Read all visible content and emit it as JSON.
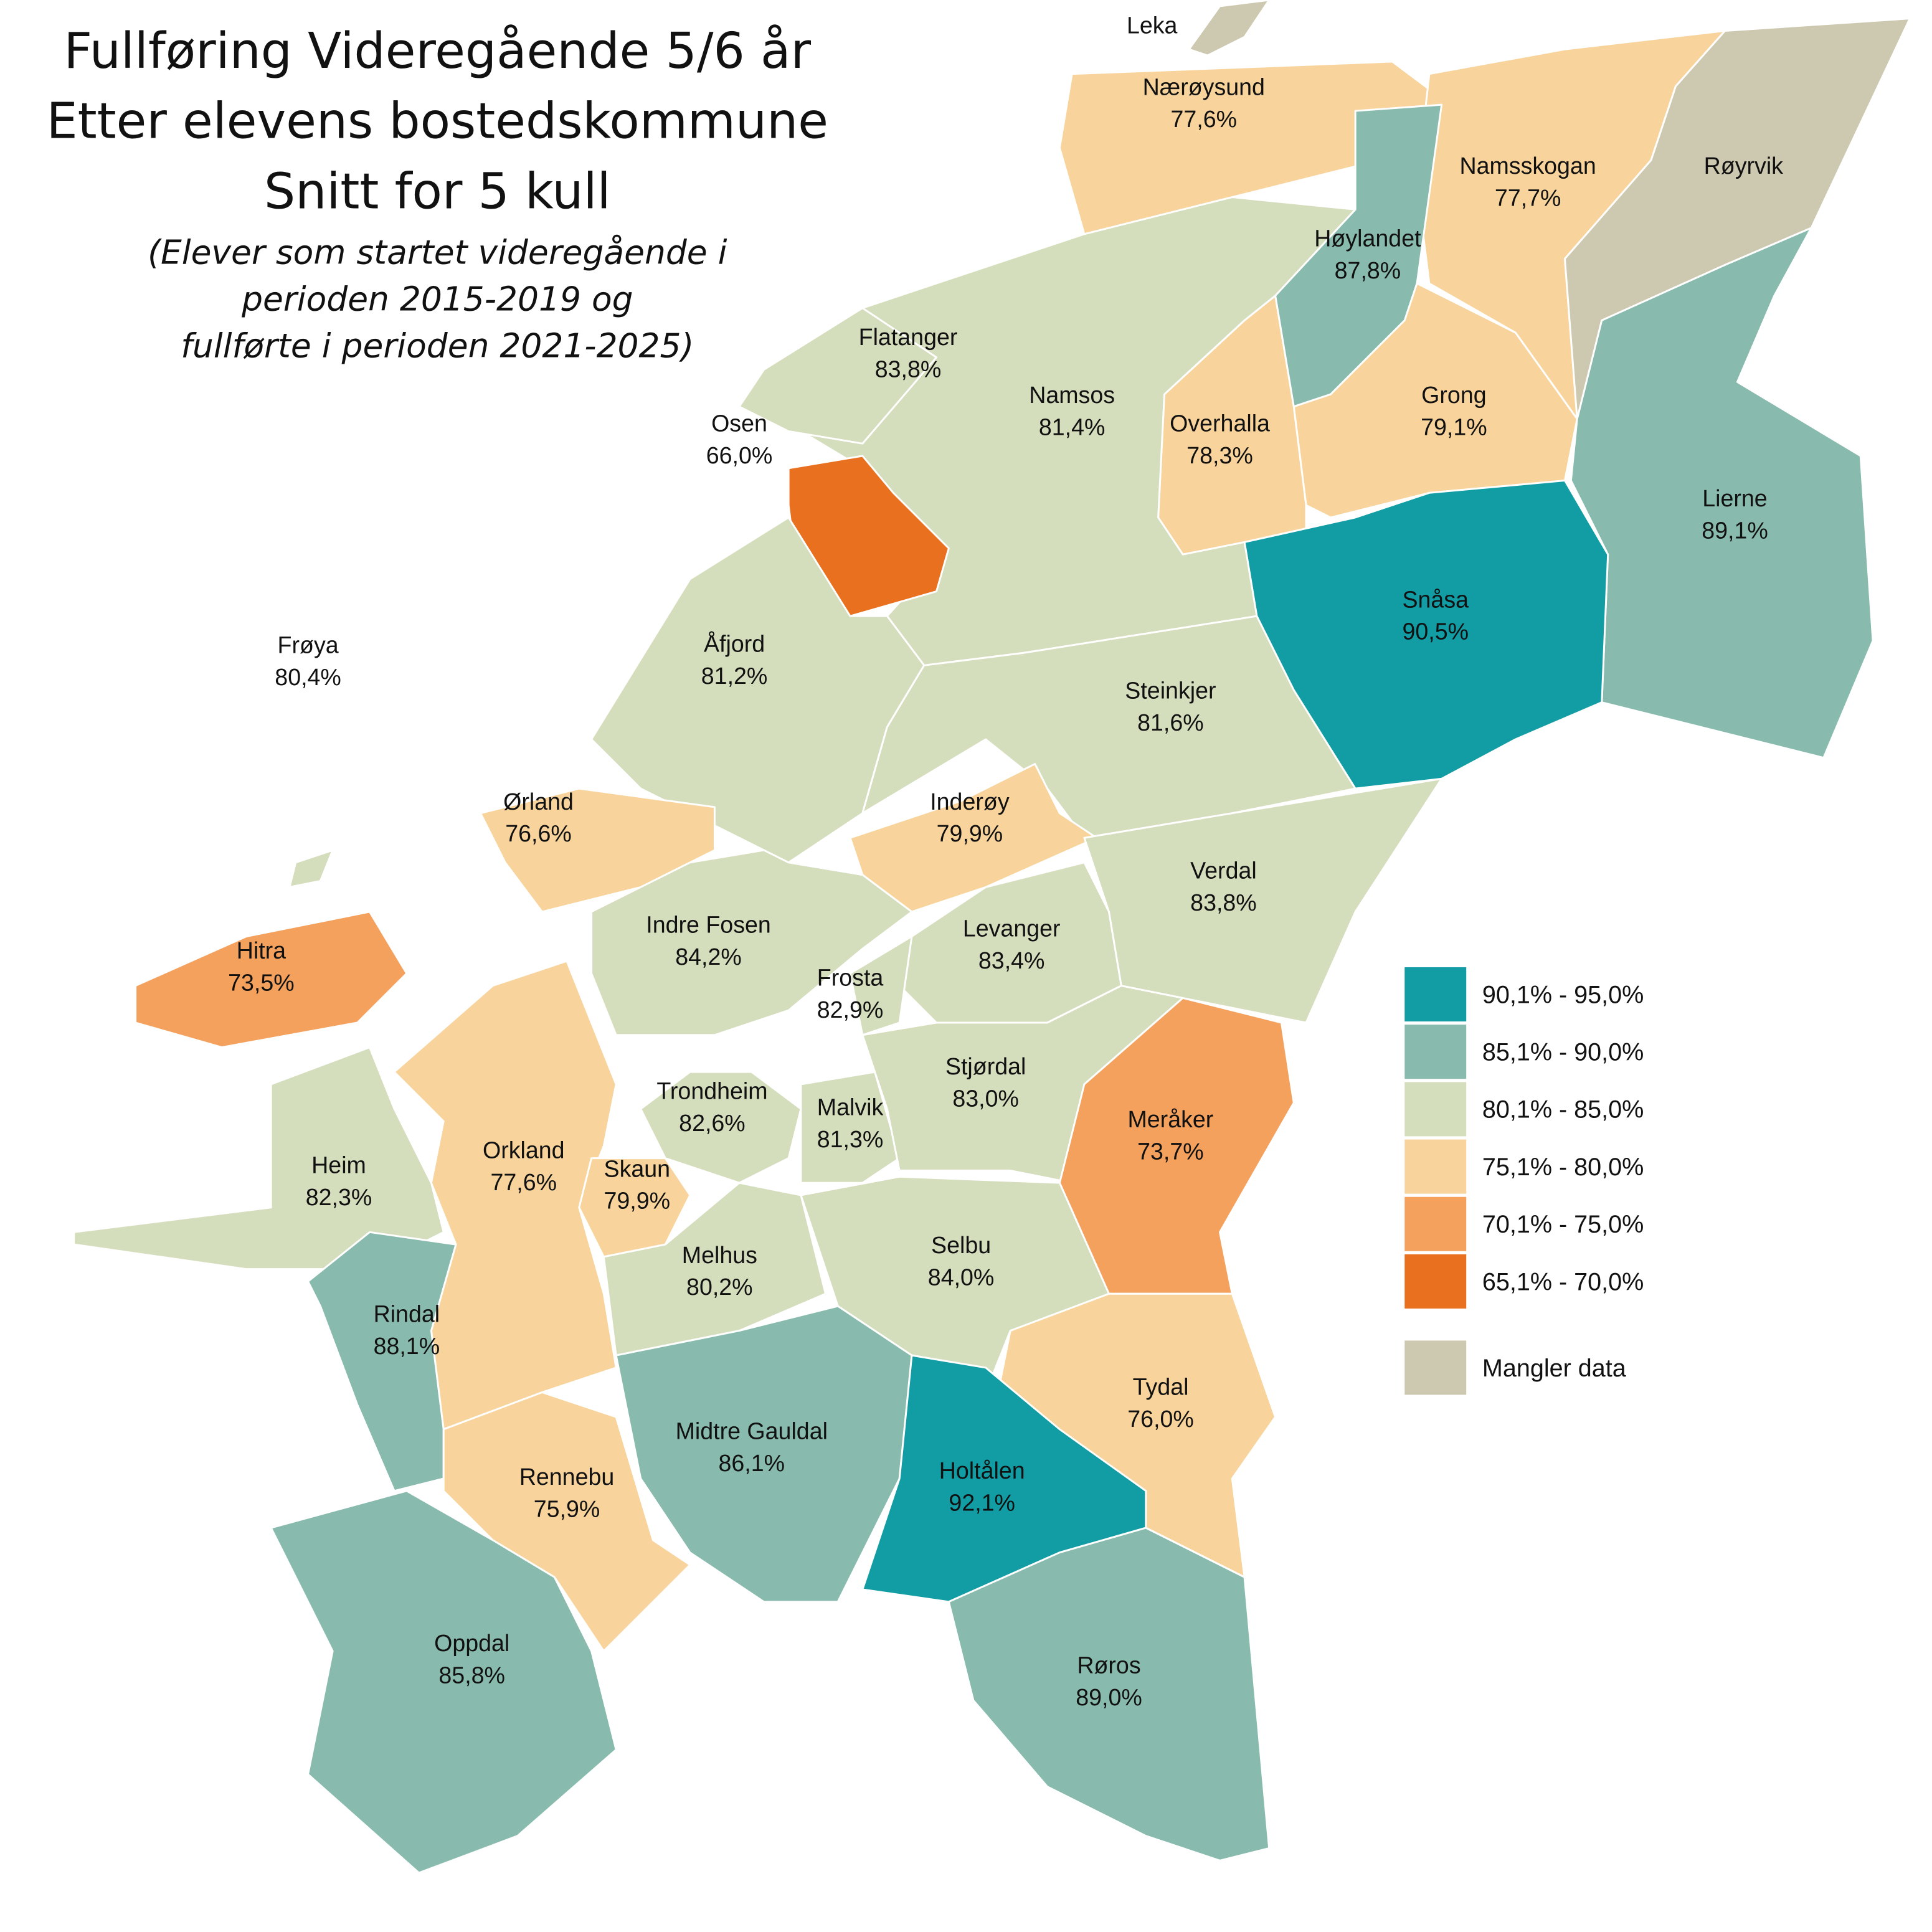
{
  "title": [
    "Fullføring Videregående 5/6 år",
    "Etter elevens bostedskommune",
    "Snitt for 5 kull"
  ],
  "subtitle": [
    "(Elever som startet videregående i",
    "perioden 2015-2019 og",
    "fullførte i perioden 2021-2025)"
  ],
  "regions": [
    {
      "name": "Leka",
      "color": "#cdc8b0"
    },
    {
      "name": "Nærøysund",
      "label": "77,6%",
      "color": "#f8d49c"
    },
    {
      "name": "Namsskogan",
      "label": "77,7%",
      "color": "#f8d49c"
    },
    {
      "name": "Røyrvik",
      "color": "#cdc8b0"
    },
    {
      "name": "Høylandet",
      "label": "87,8%",
      "color": "#88bbad"
    },
    {
      "name": "Grong",
      "label": "79,1%",
      "color": "#f8d49c"
    },
    {
      "name": "Overhalla",
      "label": "78,3%",
      "color": "#f8d49c"
    },
    {
      "name": "Lierne",
      "label": "89,1%",
      "color": "#88bbad"
    },
    {
      "name": "Snåsa",
      "label": "90,5%",
      "color": "#129ca3"
    },
    {
      "name": "Namsos",
      "label": "81,4%",
      "color": "#d4ddbc"
    },
    {
      "name": "Flatanger",
      "label": "83,8%",
      "color": "#d4ddbc"
    },
    {
      "name": "Osen",
      "label": "66,0%",
      "color": "#e9701f"
    },
    {
      "name": "Åfjord",
      "label": "81,2%",
      "color": "#d4ddbc"
    },
    {
      "name": "Steinkjer",
      "label": "81,6%",
      "color": "#d4ddbc"
    },
    {
      "name": "Frøya",
      "label": "80,4%",
      "color": "#d4ddbc"
    },
    {
      "name": "Ørland",
      "label": "76,6%",
      "color": "#f8d49c"
    },
    {
      "name": "Inderøy",
      "label": "79,9%",
      "color": "#f8d49c"
    },
    {
      "name": "Indre Fosen",
      "label": "84,2%",
      "color": "#d4ddbc"
    },
    {
      "name": "Verdal",
      "label": "83,8%",
      "color": "#d4ddbc"
    },
    {
      "name": "Levanger",
      "label": "83,4%",
      "color": "#d4ddbc"
    },
    {
      "name": "Frosta",
      "label": "82,9%",
      "color": "#d4ddbc"
    },
    {
      "name": "Hitra",
      "label": "73,5%",
      "color": "#f4a15e"
    },
    {
      "name": "Heim",
      "label": "82,3%",
      "color": "#d4ddbc"
    },
    {
      "name": "Orkland",
      "label": "77,6%",
      "color": "#f8d49c"
    },
    {
      "name": "Rindal",
      "label": "88,1%",
      "color": "#88bbad"
    },
    {
      "name": "Trondheim",
      "label": "82,6%",
      "color": "#d4ddbc"
    },
    {
      "name": "Malvik",
      "label": "81,3%",
      "color": "#d4ddbc"
    },
    {
      "name": "Stjørdal",
      "label": "83,0%",
      "color": "#d4ddbc"
    },
    {
      "name": "Meråker",
      "label": "73,7%",
      "color": "#f4a15e"
    },
    {
      "name": "Skaun",
      "label": "79,9%",
      "color": "#f8d49c"
    },
    {
      "name": "Melhus",
      "label": "80,2%",
      "color": "#d4ddbc"
    },
    {
      "name": "Selbu",
      "label": "84,0%",
      "color": "#d4ddbc"
    },
    {
      "name": "Tydal",
      "label": "76,0%",
      "color": "#f8d49c"
    },
    {
      "name": "Midtre Gauldal",
      "label": "86,1%",
      "color": "#88bbad"
    },
    {
      "name": "Holtålen",
      "label": "92,1%",
      "color": "#129ca3"
    },
    {
      "name": "Rennebu",
      "label": "75,9%",
      "color": "#f8d49c"
    },
    {
      "name": "Oppdal",
      "label": "85,8%",
      "color": "#88bbad"
    },
    {
      "name": "Røros",
      "label": "89,0%",
      "color": "#88bbad"
    }
  ],
  "legend": [
    {
      "label": "90,1% - 95,0%",
      "color": "#129ca3"
    },
    {
      "label": "85,1% - 90,0%",
      "color": "#88bbad"
    },
    {
      "label": "80,1% - 85,0%",
      "color": "#d4ddbc"
    },
    {
      "label": "75,1% - 80,0%",
      "color": "#f8d49c"
    },
    {
      "label": "70,1% - 75,0%",
      "color": "#f4a15e"
    },
    {
      "label": "65,1% - 70,0%",
      "color": "#e9701f"
    },
    {
      "label": "Mangler data",
      "color": "#cdc8b0"
    }
  ]
}
